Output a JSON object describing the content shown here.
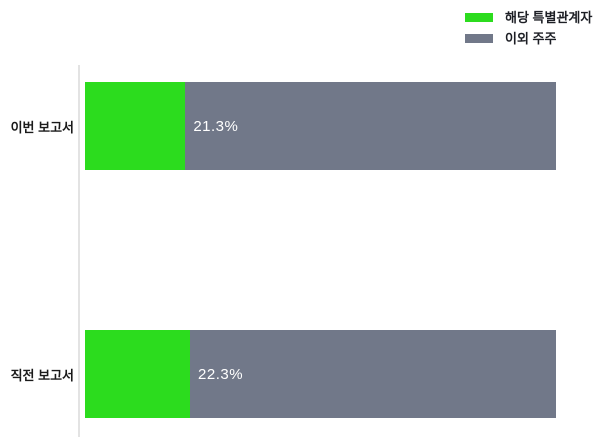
{
  "chart_data": {
    "type": "bar",
    "orientation": "horizontal",
    "stacked": true,
    "unit": "%",
    "title": "",
    "categories": [
      "이번 보고서",
      "직전 보고서"
    ],
    "series": [
      {
        "name": "해당 특별관계자",
        "color": "#2cdc1e",
        "values": [
          21.3,
          22.3
        ]
      },
      {
        "name": "이외 주주",
        "color": "#717889",
        "values": [
          78.7,
          77.7
        ]
      }
    ],
    "value_labels": [
      "21.3%",
      "22.3%"
    ],
    "xlim": [
      0,
      100
    ],
    "grid": false,
    "legend_position": "top-right"
  },
  "legend": {
    "items": [
      {
        "label": "해당 특별관계자",
        "color": "#2cdc1e"
      },
      {
        "label": "이외 주주",
        "color": "#717889"
      }
    ]
  },
  "colors": {
    "axis_line": "#e3e3e3",
    "category_text": "#1a1a1a",
    "legend_text": "#1c1e24",
    "value_text": "#ffffff",
    "background": "#ffffff"
  }
}
